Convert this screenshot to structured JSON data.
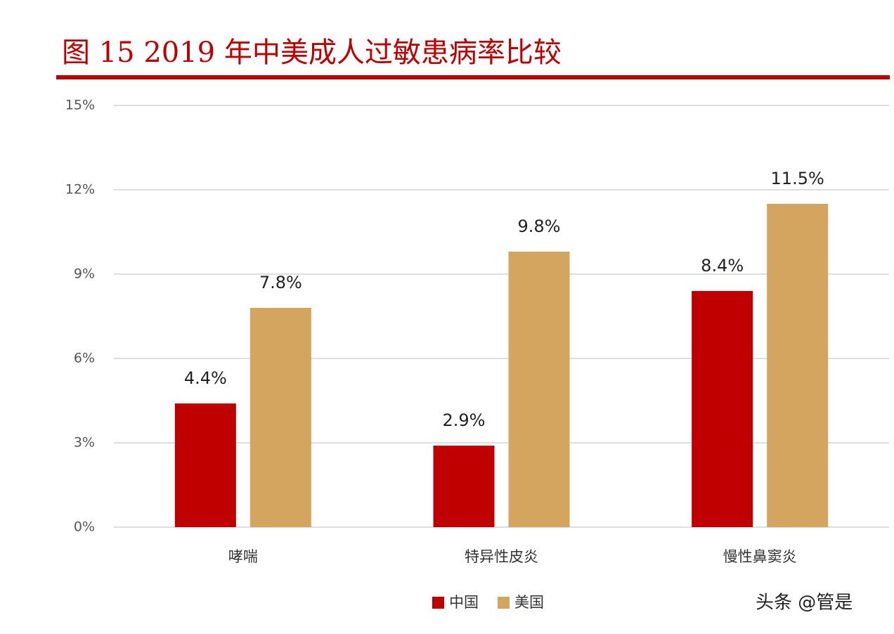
{
  "chart_data": {
    "type": "bar",
    "title": "图 15 2019 年中美成人过敏患病率比较",
    "categories": [
      "哮喘",
      "特异性皮炎",
      "慢性鼻窦炎"
    ],
    "series": [
      {
        "name": "中国",
        "color": "#c00000",
        "values": [
          4.4,
          2.9,
          8.4
        ],
        "value_labels": [
          "4.4%",
          "2.9%",
          "8.4%"
        ]
      },
      {
        "name": "美国",
        "color": "#d4a55f",
        "values": [
          7.8,
          9.8,
          11.5
        ],
        "value_labels": [
          "7.8%",
          "9.8%",
          "11.5%"
        ]
      }
    ],
    "ylim": [
      0,
      15
    ],
    "yticks": [
      {
        "value": 0,
        "label": "0%"
      },
      {
        "value": 3,
        "label": "3%"
      },
      {
        "value": 6,
        "label": "6%"
      },
      {
        "value": 9,
        "label": "9%"
      },
      {
        "value": 12,
        "label": "12%"
      },
      {
        "value": 15,
        "label": "15%"
      }
    ],
    "grid": true,
    "legend": "bottom",
    "watermark": "头条 @管是"
  }
}
